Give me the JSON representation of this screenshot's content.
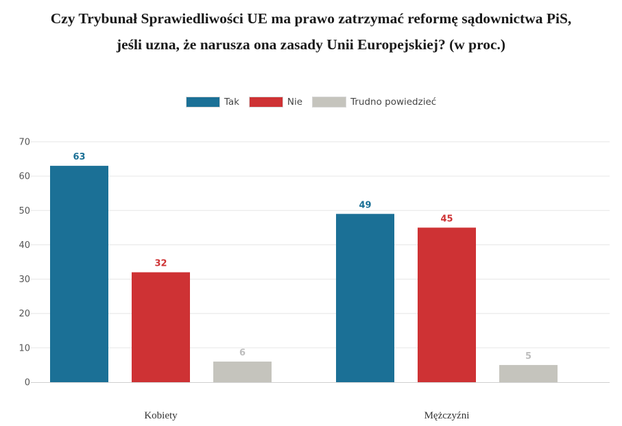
{
  "title_lines": [
    "Czy Trybunał Sprawiedliwości UE ma prawo zatrzymać reformę sądownictwa PiS,",
    "jeśli uzna, że narusza ona zasady Unii Europejskiej? (w proc.)"
  ],
  "legend": [
    {
      "label": "Tak",
      "color": "#1b7096"
    },
    {
      "label": "Nie",
      "color": "#ce3234"
    },
    {
      "label": "Trudno powiedzieć",
      "color": "#c5c4bd"
    }
  ],
  "chart_data": {
    "type": "bar",
    "title": "Czy Trybunał Sprawiedliwości UE ma prawo zatrzymać reformę sądownictwa PiS, jeśli uzna, że narusza ona zasady Unii Europejskiej? (w proc.)",
    "categories": [
      "Kobiety",
      "Mężczyźni"
    ],
    "series": [
      {
        "name": "Tak",
        "values": [
          63,
          49
        ],
        "color": "#1b7096"
      },
      {
        "name": "Nie",
        "values": [
          32,
          45
        ],
        "color": "#ce3234"
      },
      {
        "name": "Trudno powiedzieć",
        "values": [
          6,
          5
        ],
        "color": "#c5c4bd"
      }
    ],
    "ylim": [
      0,
      70
    ],
    "yticks": [
      "0",
      "10",
      "20",
      "30",
      "40",
      "50",
      "60",
      "70"
    ],
    "grid": true,
    "legend_position": "top-center",
    "xlabel": "",
    "ylabel": ""
  }
}
